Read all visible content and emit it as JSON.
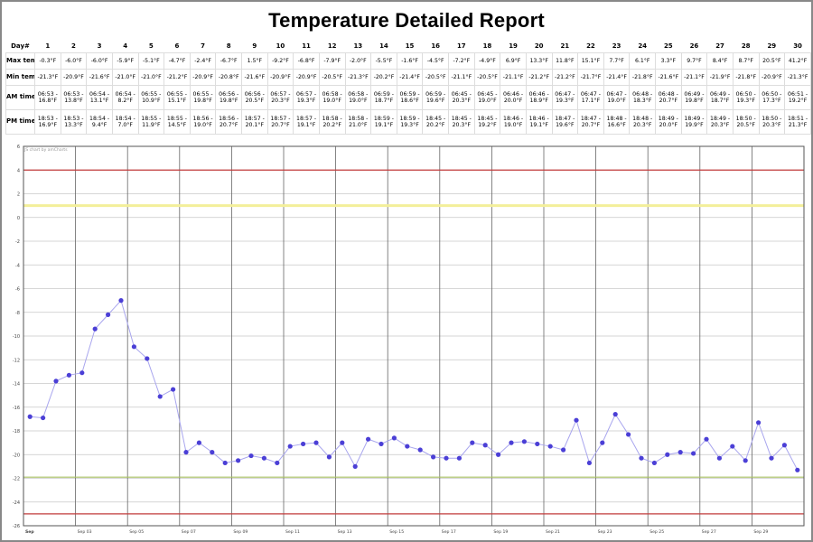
{
  "title": "Temperature Detailed Report",
  "table": {
    "row_labels": {
      "day": "Day#",
      "max": "Max temp",
      "min": "Min temp",
      "am": "AM time temp",
      "pm": "PM time temp"
    },
    "days": [
      "1",
      "2",
      "3",
      "4",
      "5",
      "6",
      "7",
      "8",
      "9",
      "10",
      "11",
      "12",
      "13",
      "14",
      "15",
      "16",
      "17",
      "18",
      "19",
      "20",
      "21",
      "22",
      "23",
      "24",
      "25",
      "26",
      "27",
      "28",
      "29",
      "30"
    ],
    "max": [
      "-0.3°F",
      "-6.0°F",
      "-6.0°F",
      "-5.9°F",
      "-5.1°F",
      "-4.7°F",
      "-2.4°F",
      "-6.7°F",
      "1.5°F",
      "-9.2°F",
      "-6.8°F",
      "-7.9°F",
      "-2.0°F",
      "-5.5°F",
      "-1.6°F",
      "-4.5°F",
      "-7.2°F",
      "-4.9°F",
      "6.9°F",
      "13.3°F",
      "11.8°F",
      "15.1°F",
      "7.7°F",
      "6.1°F",
      "3.3°F",
      "9.7°F",
      "8.4°F",
      "8.7°F",
      "20.5°F",
      "41.2°F"
    ],
    "min": [
      "-21.3°F",
      "-20.9°F",
      "-21.6°F",
      "-21.0°F",
      "-21.0°F",
      "-21.2°F",
      "-20.9°F",
      "-20.8°F",
      "-21.6°F",
      "-20.9°F",
      "-20.9°F",
      "-20.5°F",
      "-21.3°F",
      "-20.2°F",
      "-21.4°F",
      "-20.5°F",
      "-21.1°F",
      "-20.5°F",
      "-21.1°F",
      "-21.2°F",
      "-21.2°F",
      "-21.7°F",
      "-21.4°F",
      "-21.8°F",
      "-21.6°F",
      "-21.1°F",
      "-21.9°F",
      "-21.8°F",
      "-20.9°F",
      "-21.3°F"
    ],
    "am_time": [
      "06:53 -",
      "06:53 -",
      "06:54 -",
      "06:54 -",
      "06:55 -",
      "06:55 -",
      "06:55 -",
      "06:56 -",
      "06:56 -",
      "06:57 -",
      "06:57 -",
      "06:58 -",
      "06:58 -",
      "06:59 -",
      "06:59 -",
      "06:59 -",
      "06:45 -",
      "06:45 -",
      "06:46 -",
      "06:46 -",
      "06:47 -",
      "06:47 -",
      "06:47 -",
      "06:48 -",
      "06:48 -",
      "06:49 -",
      "06:49 -",
      "06:50 -",
      "06:50 -",
      "06:51 -"
    ],
    "am_temp": [
      "16.8°F",
      "13.8°F",
      "13.1°F",
      "8.2°F",
      "10.9°F",
      "15.1°F",
      "19.8°F",
      "19.8°F",
      "20.5°F",
      "20.3°F",
      "19.3°F",
      "19.0°F",
      "19.0°F",
      "18.7°F",
      "18.6°F",
      "19.6°F",
      "20.3°F",
      "19.0°F",
      "20.0°F",
      "18.9°F",
      "19.3°F",
      "17.1°F",
      "19.0°F",
      "18.3°F",
      "20.7°F",
      "19.8°F",
      "18.7°F",
      "19.3°F",
      "17.3°F",
      "19.2°F"
    ],
    "pm_time": [
      "18:53 -",
      "18:53 -",
      "18:54 -",
      "18:54 -",
      "18:55 -",
      "18:55 -",
      "18:56 -",
      "18:56 -",
      "18:57 -",
      "18:57 -",
      "18:57 -",
      "18:58 -",
      "18:58 -",
      "18:59 -",
      "18:59 -",
      "18:45 -",
      "18:45 -",
      "18:45 -",
      "18:46 -",
      "18:46 -",
      "18:47 -",
      "18:47 -",
      "18:48 -",
      "18:48 -",
      "18:49 -",
      "18:49 -",
      "18:49 -",
      "18:50 -",
      "18:50 -",
      "18:51 -"
    ],
    "pm_temp": [
      "16.9°F",
      "13.3°F",
      "9.4°F",
      "7.0°F",
      "11.9°F",
      "14.5°F",
      "19.0°F",
      "20.7°F",
      "20.1°F",
      "20.7°F",
      "19.1°F",
      "20.2°F",
      "21.0°F",
      "19.1°F",
      "19.3°F",
      "20.2°F",
      "20.3°F",
      "19.2°F",
      "19.0°F",
      "19.1°F",
      "19.6°F",
      "20.7°F",
      "16.6°F",
      "20.3°F",
      "20.0°F",
      "19.9°F",
      "20.3°F",
      "20.5°F",
      "20.3°F",
      "21.3°F"
    ]
  },
  "chart_data": {
    "type": "line",
    "watermark": "JS chart by amCharts",
    "ylim": [
      -26,
      6
    ],
    "yticks": [
      6,
      4,
      2,
      0,
      -2,
      -4,
      -6,
      -8,
      -10,
      -12,
      -14,
      -16,
      -18,
      -20,
      -22,
      -24,
      -26
    ],
    "x_range": [
      0,
      30
    ],
    "xticks": [
      {
        "x": 0,
        "label": "Sep"
      },
      {
        "x": 2,
        "label": "Sep 03"
      },
      {
        "x": 4,
        "label": "Sep 05"
      },
      {
        "x": 6,
        "label": "Sep 07"
      },
      {
        "x": 8,
        "label": "Sep 09"
      },
      {
        "x": 10,
        "label": "Sep 11"
      },
      {
        "x": 12,
        "label": "Sep 13"
      },
      {
        "x": 14,
        "label": "Sep 15"
      },
      {
        "x": 16,
        "label": "Sep 17"
      },
      {
        "x": 18,
        "label": "Sep 19"
      },
      {
        "x": 20,
        "label": "Sep 21"
      },
      {
        "x": 22,
        "label": "Sep 23"
      },
      {
        "x": 24,
        "label": "Sep 25"
      },
      {
        "x": 26,
        "label": "Sep 27"
      },
      {
        "x": 28,
        "label": "Sep 29"
      }
    ],
    "guides": [
      {
        "value": 4,
        "color": "#c23b3b"
      },
      {
        "value": 1,
        "color": "#f3ef9a"
      },
      {
        "value": -21.9,
        "color": "#a8c060"
      },
      {
        "value": -25,
        "color": "#c23b3b"
      }
    ],
    "series": [
      {
        "color": "#4b3fd6",
        "line_color": "#a9a6ee",
        "x": [
          0.25,
          0.75,
          1.25,
          1.75,
          2.25,
          2.75,
          3.25,
          3.75,
          4.25,
          4.75,
          5.25,
          5.75,
          6.25,
          6.75,
          7.25,
          7.75,
          8.25,
          8.75,
          9.25,
          9.75,
          10.25,
          10.75,
          11.25,
          11.75,
          12.25,
          12.75,
          13.25,
          13.75,
          14.25,
          14.75,
          15.25,
          15.75,
          16.25,
          16.75,
          17.25,
          17.75,
          18.25,
          18.75,
          19.25,
          19.75,
          20.25,
          20.75,
          21.25,
          21.75,
          22.25,
          22.75,
          23.25,
          23.75,
          24.25,
          24.75,
          25.25,
          25.75,
          26.25,
          26.75,
          27.25,
          27.75,
          28.25,
          28.75,
          29.25,
          29.75
        ],
        "y": [
          -16.8,
          -16.9,
          -13.8,
          -13.3,
          -13.1,
          -9.4,
          -8.2,
          -7.0,
          -10.9,
          -11.9,
          -15.1,
          -14.5,
          -19.8,
          -19.0,
          -19.8,
          -20.7,
          -20.5,
          -20.1,
          -20.3,
          -20.7,
          -19.3,
          -19.1,
          -19.0,
          -20.2,
          -19.0,
          -21.0,
          -18.7,
          -19.1,
          -18.6,
          -19.3,
          -19.6,
          -20.2,
          -20.3,
          -20.3,
          -19.0,
          -19.2,
          -20.0,
          -19.0,
          -18.9,
          -19.1,
          -19.3,
          -19.6,
          -17.1,
          -20.7,
          -19.0,
          -16.6,
          -18.3,
          -20.3,
          -20.7,
          -20.0,
          -19.8,
          -19.9,
          -18.7,
          -20.3,
          -19.3,
          -20.5,
          -17.3,
          -20.3,
          -19.2,
          -21.3
        ]
      }
    ]
  }
}
